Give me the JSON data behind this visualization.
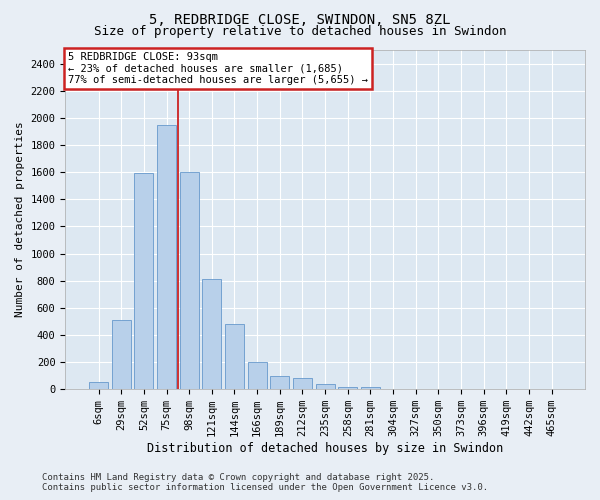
{
  "title1": "5, REDBRIDGE CLOSE, SWINDON, SN5 8ZL",
  "title2": "Size of property relative to detached houses in Swindon",
  "xlabel": "Distribution of detached houses by size in Swindon",
  "ylabel": "Number of detached properties",
  "categories": [
    "6sqm",
    "29sqm",
    "52sqm",
    "75sqm",
    "98sqm",
    "121sqm",
    "144sqm",
    "166sqm",
    "189sqm",
    "212sqm",
    "235sqm",
    "258sqm",
    "281sqm",
    "304sqm",
    "327sqm",
    "350sqm",
    "373sqm",
    "396sqm",
    "419sqm",
    "442sqm",
    "465sqm"
  ],
  "values": [
    52,
    510,
    1590,
    1950,
    1600,
    810,
    480,
    200,
    95,
    85,
    36,
    20,
    15,
    5,
    2,
    0,
    0,
    0,
    0,
    2,
    0
  ],
  "bar_color": "#b8d0ea",
  "bar_edgecolor": "#6699cc",
  "vline_x_index": 3.5,
  "vline_color": "#cc2222",
  "annotation_title": "5 REDBRIDGE CLOSE: 93sqm",
  "annotation_line1": "← 23% of detached houses are smaller (1,685)",
  "annotation_line2": "77% of semi-detached houses are larger (5,655) →",
  "annotation_box_facecolor": "white",
  "annotation_box_edgecolor": "#cc2222",
  "ylim": [
    0,
    2500
  ],
  "yticks": [
    0,
    200,
    400,
    600,
    800,
    1000,
    1200,
    1400,
    1600,
    1800,
    2000,
    2200,
    2400
  ],
  "footer1": "Contains HM Land Registry data © Crown copyright and database right 2025.",
  "footer2": "Contains public sector information licensed under the Open Government Licence v3.0.",
  "bg_color": "#e8eef5",
  "plot_bg_color": "#dde8f2",
  "title_fontsize": 10,
  "subtitle_fontsize": 9,
  "xlabel_fontsize": 8.5,
  "ylabel_fontsize": 8,
  "tick_fontsize": 7.5,
  "annot_fontsize": 7.5,
  "footer_fontsize": 6.5
}
